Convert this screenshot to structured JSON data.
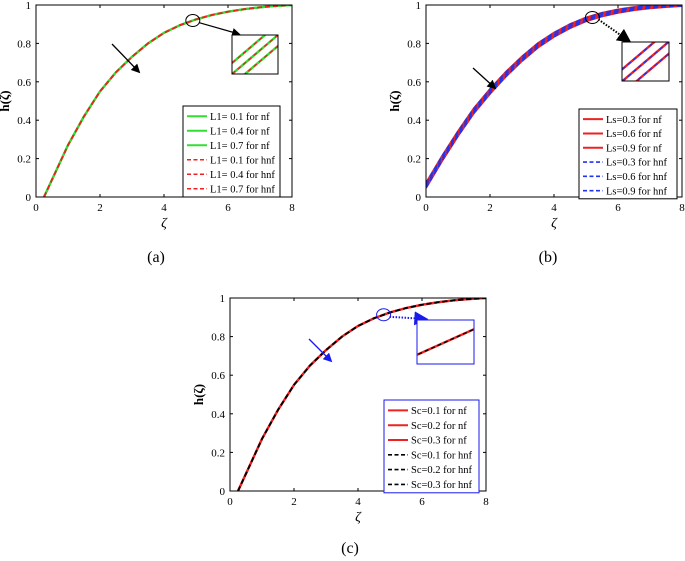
{
  "chart_data": [
    {
      "type": "line",
      "panel_label": "(a)",
      "xlabel": "ζ",
      "ylabel": "h(ζ)",
      "xlim": [
        0,
        8
      ],
      "ylim": [
        0,
        1
      ],
      "xticks": [
        "0",
        "2",
        "4",
        "6",
        "8"
      ],
      "yticks": [
        "0",
        "0.2",
        "0.4",
        "0.6",
        "0.8",
        "1"
      ],
      "legend_position": "bottom-right",
      "arrow_color": "#000000",
      "inset_border": "#000000",
      "series": [
        {
          "name": "L1= 0.1 for nf",
          "color": "#33dd33",
          "dash": "solid",
          "offset": 0.0
        },
        {
          "name": "L1= 0.4 for nf",
          "color": "#33dd33",
          "dash": "solid",
          "offset": 0.0
        },
        {
          "name": "L1= 0.7 for nf",
          "color": "#33dd33",
          "dash": "solid",
          "offset": 0.0
        },
        {
          "name": "L1= 0.1 for hnf",
          "color": "#ee2222",
          "dash": "dashed",
          "offset": 0.0
        },
        {
          "name": "L1= 0.4 for hnf",
          "color": "#ee2222",
          "dash": "dashed",
          "offset": 0.0
        },
        {
          "name": "L1= 0.7 for hnf",
          "color": "#ee2222",
          "dash": "dashed",
          "offset": 0.0
        }
      ],
      "x": [
        0.25,
        0.5,
        1,
        1.5,
        2,
        2.5,
        3,
        3.5,
        4,
        4.5,
        5,
        5.5,
        6,
        6.5,
        7,
        7.5,
        8
      ],
      "y": [
        0,
        0.09,
        0.27,
        0.42,
        0.55,
        0.65,
        0.73,
        0.8,
        0.855,
        0.895,
        0.925,
        0.948,
        0.965,
        0.978,
        0.988,
        0.995,
        1.0
      ]
    },
    {
      "type": "line",
      "panel_label": "(b)",
      "xlabel": "ζ",
      "ylabel": "h(ζ)",
      "xlim": [
        0,
        8
      ],
      "ylim": [
        0,
        1
      ],
      "xticks": [
        "0",
        "2",
        "4",
        "6",
        "8"
      ],
      "yticks": [
        "0",
        "0.2",
        "0.4",
        "0.6",
        "0.8",
        "1"
      ],
      "legend_position": "bottom-right",
      "arrow_color": "#000000",
      "inset_border": "#000000",
      "series": [
        {
          "name": "Ls=0.3 for nf",
          "color": "#ee2222",
          "dash": "solid",
          "offset": 0.012
        },
        {
          "name": "Ls=0.6 for nf",
          "color": "#ee2222",
          "dash": "solid",
          "offset": 0.0
        },
        {
          "name": "Ls=0.9 for nf",
          "color": "#ee2222",
          "dash": "solid",
          "offset": -0.012
        },
        {
          "name": "Ls=0.3 for hnf",
          "color": "#2233ee",
          "dash": "dashed",
          "offset": 0.012
        },
        {
          "name": "Ls=0.6 for hnf",
          "color": "#2233ee",
          "dash": "dashed",
          "offset": 0.0
        },
        {
          "name": "Ls=0.9 for hnf",
          "color": "#2233ee",
          "dash": "dashed",
          "offset": -0.012
        }
      ],
      "x": [
        0,
        0.5,
        1,
        1.5,
        2,
        2.5,
        3,
        3.5,
        4,
        4.5,
        5,
        5.5,
        6,
        6.5,
        7,
        7.5,
        8
      ],
      "y": [
        0.06,
        0.2,
        0.33,
        0.45,
        0.55,
        0.64,
        0.72,
        0.79,
        0.845,
        0.89,
        0.925,
        0.95,
        0.968,
        0.981,
        0.99,
        0.996,
        1.0
      ]
    },
    {
      "type": "line",
      "panel_label": "(c)",
      "xlabel": "ζ",
      "ylabel": "h(ζ)",
      "xlim": [
        0,
        8
      ],
      "ylim": [
        0,
        1
      ],
      "xticks": [
        "0",
        "2",
        "4",
        "6",
        "8"
      ],
      "yticks": [
        "0",
        "0.2",
        "0.4",
        "0.6",
        "0.8",
        "1"
      ],
      "legend_position": "bottom-right",
      "arrow_color": "#1a1aee",
      "inset_border": "#1a1aee",
      "series": [
        {
          "name": "Sc=0.1 for nf",
          "color": "#ee2222",
          "dash": "solid",
          "offset": 0.0
        },
        {
          "name": "Sc=0.2 for nf",
          "color": "#ee2222",
          "dash": "solid",
          "offset": 0.0
        },
        {
          "name": "Sc=0.3 for nf",
          "color": "#ee2222",
          "dash": "solid",
          "offset": 0.0
        },
        {
          "name": "Sc=0.1 for hnf",
          "color": "#000000",
          "dash": "dashed",
          "offset": 0.0
        },
        {
          "name": "Sc=0.2 for hnf",
          "color": "#000000",
          "dash": "dashed",
          "offset": 0.0
        },
        {
          "name": "Sc=0.3 for hnf",
          "color": "#000000",
          "dash": "dashed",
          "offset": 0.0
        }
      ],
      "x": [
        0.25,
        0.5,
        1,
        1.5,
        2,
        2.5,
        3,
        3.5,
        4,
        4.5,
        5,
        5.5,
        6,
        6.5,
        7,
        7.5,
        8
      ],
      "y": [
        0,
        0.09,
        0.27,
        0.42,
        0.55,
        0.65,
        0.73,
        0.8,
        0.855,
        0.895,
        0.925,
        0.948,
        0.965,
        0.978,
        0.988,
        0.995,
        1.0
      ]
    }
  ]
}
